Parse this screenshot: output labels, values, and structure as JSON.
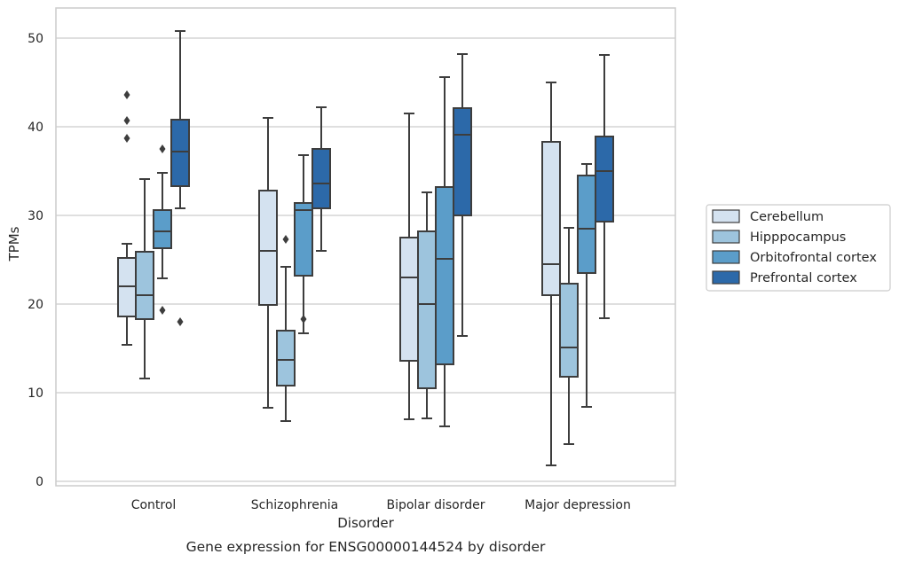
{
  "chart_data": {
    "type": "box",
    "title": "",
    "caption": "Gene expression for ENSG00000144524 by disorder",
    "xlabel": "Disorder",
    "ylabel": "TPMs",
    "ylim": [
      -0.5,
      53.5
    ],
    "yticks": [
      0,
      10,
      20,
      30,
      40,
      50
    ],
    "grid": "horizontal",
    "legend": "right",
    "categories": [
      "Control",
      "Schizophrenia",
      "Bipolar disorder",
      "Major depression"
    ],
    "series": [
      {
        "name": "Cerebellum",
        "color": "#d4e2f0",
        "boxes": [
          {
            "whislo": 15.4,
            "q1": 18.6,
            "med": 22.0,
            "q3": 25.2,
            "whishi": 26.8,
            "fliers": []
          },
          {
            "whislo": 8.3,
            "q1": 19.9,
            "med": 26.0,
            "q3": 32.8,
            "whishi": 41.0,
            "fliers": []
          },
          {
            "whislo": 7.0,
            "q1": 13.6,
            "med": 23.0,
            "q3": 27.5,
            "whishi": 41.5,
            "fliers": []
          },
          {
            "whislo": 1.8,
            "q1": 21.0,
            "med": 24.5,
            "q3": 38.3,
            "whishi": 45.0,
            "fliers": []
          }
        ]
      },
      {
        "name": "Hipppocampus",
        "color": "#9dc4dd",
        "boxes": [
          {
            "whislo": 11.6,
            "q1": 18.3,
            "med": 21.0,
            "q3": 25.9,
            "whishi": 34.1,
            "fliers": []
          },
          {
            "whislo": 6.8,
            "q1": 10.8,
            "med": 13.7,
            "q3": 17.0,
            "whishi": 24.2,
            "fliers": [
              27.3
            ]
          },
          {
            "whislo": 7.1,
            "q1": 10.5,
            "med": 20.0,
            "q3": 28.2,
            "whishi": 32.6,
            "fliers": []
          },
          {
            "whislo": 4.2,
            "q1": 11.8,
            "med": 15.1,
            "q3": 22.3,
            "whishi": 28.6,
            "fliers": []
          }
        ]
      },
      {
        "name": "Orbitofrontal cortex",
        "color": "#5b9dc9",
        "boxes": [
          {
            "whislo": 22.9,
            "q1": 26.3,
            "med": 28.2,
            "q3": 30.6,
            "whishi": 34.8,
            "fliers": [
              37.5,
              19.3
            ]
          },
          {
            "whislo": 16.7,
            "q1": 23.2,
            "med": 30.6,
            "q3": 31.4,
            "whishi": 36.8,
            "fliers": [
              18.3
            ]
          },
          {
            "whislo": 6.2,
            "q1": 13.2,
            "med": 25.1,
            "q3": 33.2,
            "whishi": 45.6,
            "fliers": []
          },
          {
            "whislo": 8.4,
            "q1": 23.5,
            "med": 28.5,
            "q3": 34.5,
            "whishi": 35.8,
            "fliers": []
          }
        ]
      },
      {
        "name": "Prefrontal cortex",
        "color": "#2c69a9",
        "boxes": [
          {
            "whislo": 30.8,
            "q1": 33.3,
            "med": 37.2,
            "q3": 40.8,
            "whishi": 50.8,
            "fliers": [
              18.0
            ]
          },
          {
            "whislo": 26.0,
            "q1": 30.8,
            "med": 33.6,
            "q3": 37.5,
            "whishi": 42.2,
            "fliers": []
          },
          {
            "whislo": 16.4,
            "q1": 30.0,
            "med": 39.1,
            "q3": 42.1,
            "whishi": 48.2,
            "fliers": []
          },
          {
            "whislo": 18.4,
            "q1": 29.3,
            "med": 35.0,
            "q3": 38.9,
            "whishi": 48.1,
            "fliers": []
          }
        ]
      }
    ],
    "control_extra_fliers": [
      43.6,
      40.7,
      38.7
    ]
  }
}
